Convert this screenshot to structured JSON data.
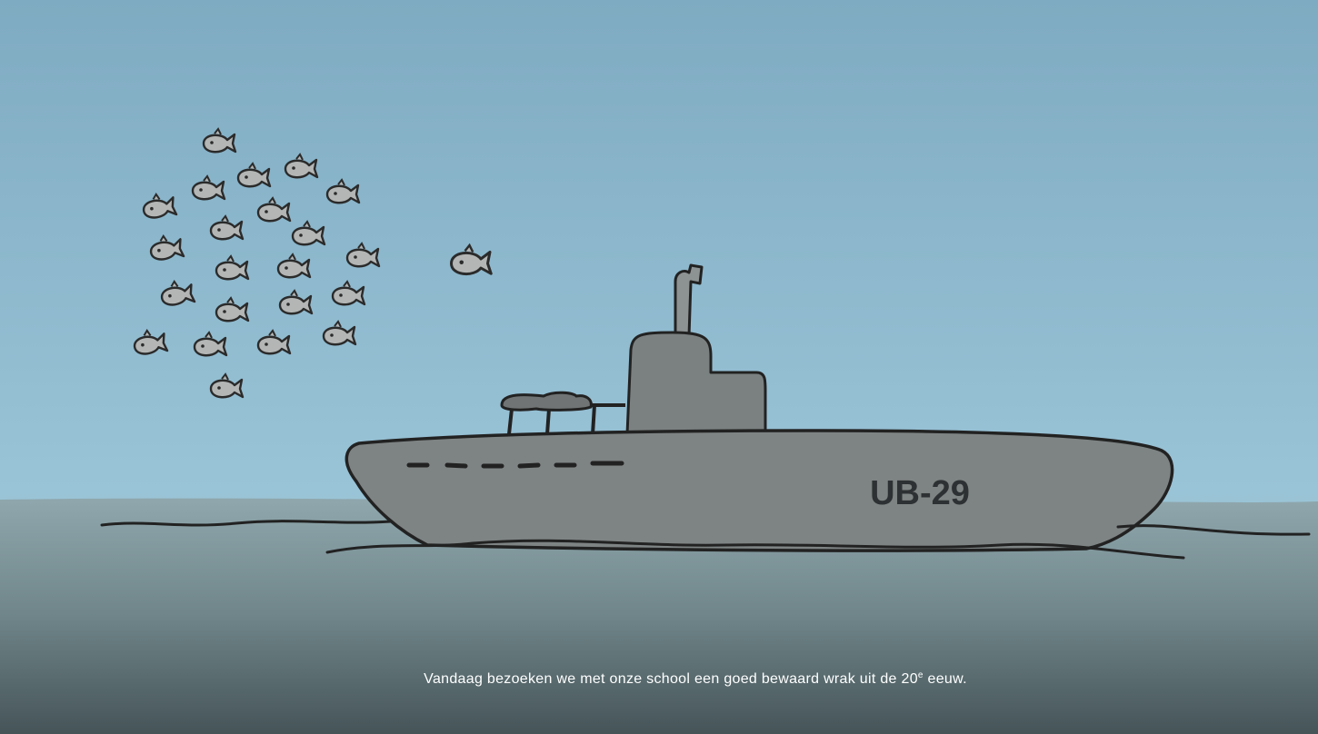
{
  "illustration": {
    "hull_label": "UB-29",
    "caption": {
      "text": "Vandaag bezoeken we met onze school een goed bewaard wrak uit de 20",
      "superscript": "e",
      "tail": " eeuw."
    }
  }
}
